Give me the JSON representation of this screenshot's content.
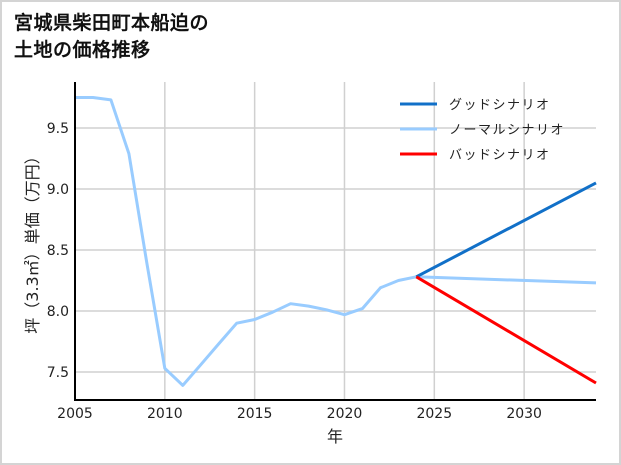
{
  "title_lines": [
    "宮城県柴田町本船迫の",
    "土地の価格推移"
  ],
  "chart_data": {
    "type": "line",
    "title": "宮城県柴田町本船迫の土地の価格推移",
    "xlabel": "年",
    "ylabel": "坪（3.3㎡）単価（万円）",
    "xlim": [
      2005,
      2034
    ],
    "ylim": [
      7.28,
      9.86
    ],
    "x_ticks": [
      2005,
      2010,
      2015,
      2020,
      2025,
      2030
    ],
    "y_ticks": [
      7.5,
      8.0,
      8.5,
      9.0,
      9.5
    ],
    "y_tick_labels": [
      "7.5",
      "8.0",
      "8.5",
      "9.0",
      "9.5"
    ],
    "grid": true,
    "legend_position": "upper right",
    "series": [
      {
        "name": "ノーマルシナリオ",
        "color": "#99ccff",
        "x": [
          2005,
          2006,
          2007,
          2008,
          2009,
          2010,
          2011,
          2012,
          2013,
          2014,
          2015,
          2016,
          2017,
          2018,
          2019,
          2020,
          2021,
          2022,
          2023,
          2024,
          2034
        ],
        "values": [
          9.75,
          9.75,
          9.73,
          9.29,
          8.39,
          7.53,
          7.39,
          7.56,
          7.73,
          7.9,
          7.93,
          7.99,
          8.06,
          8.04,
          8.01,
          7.97,
          8.02,
          8.19,
          8.25,
          8.28,
          8.23
        ]
      },
      {
        "name": "グッドシナリオ",
        "color": "#1170c8",
        "x": [
          2024,
          2034
        ],
        "values": [
          8.28,
          9.05
        ]
      },
      {
        "name": "バッドシナリオ",
        "color": "#ff0000",
        "x": [
          2024,
          2034
        ],
        "values": [
          8.28,
          7.41
        ]
      }
    ],
    "legend": [
      "グッドシナリオ",
      "ノーマルシナリオ",
      "バッドシナリオ"
    ]
  }
}
